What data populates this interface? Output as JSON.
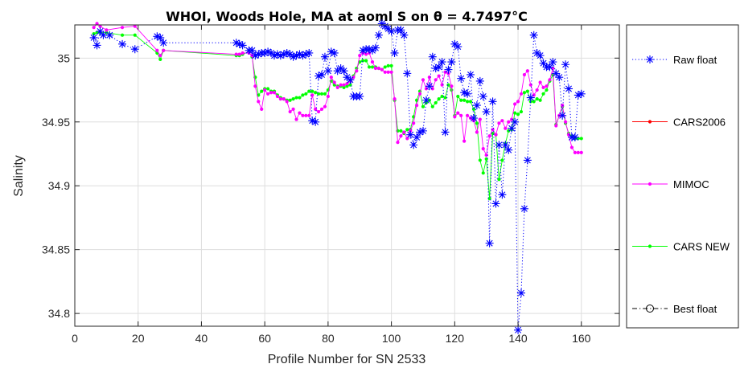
{
  "chart_data": {
    "type": "line",
    "title": "WHOI, Woods Hole, MA at aoml S on θ = 4.7497°C",
    "xlabel": "Profile Number for SN 2533",
    "ylabel": "Salinity",
    "xlim": [
      0,
      172
    ],
    "ylim": [
      34.79,
      35.026
    ],
    "xticks": [
      0,
      20,
      40,
      60,
      80,
      100,
      120,
      140,
      160
    ],
    "yticks": [
      34.8,
      34.85,
      34.9,
      34.95,
      35
    ],
    "grid": true,
    "legend_position": "outside-right",
    "series": [
      {
        "name": "Raw float",
        "color": "#0000ff",
        "line": "dotted",
        "marker": "asterisk",
        "x": [
          6,
          7,
          8,
          9,
          11,
          15,
          19,
          26,
          27,
          28,
          51,
          52,
          53,
          55,
          56,
          57,
          58,
          59,
          60,
          61,
          62,
          63,
          64,
          65,
          66,
          67,
          68,
          69,
          70,
          71,
          72,
          73,
          74,
          75,
          76,
          77,
          78,
          79,
          80,
          81,
          82,
          83,
          84,
          85,
          86,
          87,
          88,
          89,
          90,
          91,
          92,
          93,
          94,
          95,
          96,
          97,
          98,
          99,
          100,
          101,
          102,
          103,
          104,
          105,
          106,
          107,
          108,
          109,
          110,
          111,
          112,
          113,
          114,
          115,
          116,
          117,
          118,
          119,
          120,
          121,
          122,
          123,
          124,
          125,
          126,
          127,
          128,
          129,
          130,
          131,
          132,
          133,
          134,
          135,
          136,
          137,
          138,
          139,
          140,
          141,
          142,
          143,
          144,
          145,
          146,
          147,
          148,
          149,
          150,
          151,
          152,
          153,
          154,
          155,
          156,
          157,
          158,
          159,
          160
        ],
        "values": [
          35.016,
          35.01,
          35.021,
          35.018,
          35.018,
          35.011,
          35.007,
          35.017,
          35.016,
          35.012,
          35.012,
          35.011,
          35.01,
          35.006,
          35.006,
          35.002,
          35.003,
          35.004,
          35.004,
          35.005,
          35.004,
          35.002,
          35.003,
          35.002,
          35.003,
          35.004,
          35.003,
          35.001,
          35.002,
          35.003,
          35.002,
          35.003,
          35.004,
          34.951,
          34.95,
          34.986,
          34.987,
          35.001,
          34.99,
          35.005,
          35.004,
          34.99,
          34.992,
          34.99,
          34.985,
          34.983,
          34.97,
          34.97,
          34.97,
          35.006,
          35.007,
          35.007,
          35.006,
          35.008,
          35.018,
          35.027,
          35.025,
          35.023,
          35.021,
          35.004,
          35.022,
          35.022,
          35.018,
          34.988,
          34.94,
          34.932,
          34.938,
          34.942,
          34.943,
          34.967,
          34.978,
          35.001,
          34.992,
          34.993,
          34.997,
          34.942,
          34.991,
          34.997,
          35.011,
          35.009,
          34.984,
          34.973,
          34.972,
          34.987,
          34.953,
          34.963,
          34.982,
          34.97,
          34.958,
          34.855,
          34.966,
          34.886,
          34.932,
          34.893,
          34.932,
          34.928,
          34.945,
          34.95,
          34.787,
          34.816,
          34.882,
          34.92,
          34.969,
          35.018,
          35.004,
          35.002,
          34.996,
          34.993,
          34.993,
          34.997,
          34.988,
          34.985,
          34.955,
          34.995,
          34.976,
          34.938,
          34.938,
          34.971,
          34.972
        ]
      },
      {
        "name": "CARS2006",
        "color": "#ff0000",
        "line": "solid",
        "marker": "dot",
        "x": [],
        "values": []
      },
      {
        "name": "MIMOC",
        "color": "#ff00ff",
        "line": "solid",
        "marker": "dot",
        "x": [
          6,
          7,
          8,
          10,
          15,
          19,
          26,
          27,
          28,
          51,
          52,
          53,
          55,
          56,
          57,
          58,
          59,
          60,
          61,
          62,
          63,
          64,
          65,
          66,
          67,
          68,
          69,
          70,
          71,
          72,
          73,
          74,
          75,
          76,
          77,
          78,
          79,
          80,
          81,
          82,
          83,
          84,
          85,
          86,
          87,
          88,
          89,
          90,
          91,
          92,
          93,
          94,
          95,
          96,
          97,
          98,
          99,
          100,
          101,
          102,
          103,
          104,
          105,
          106,
          107,
          108,
          109,
          110,
          111,
          112,
          113,
          114,
          115,
          116,
          117,
          118,
          119,
          120,
          121,
          122,
          123,
          124,
          125,
          126,
          127,
          128,
          129,
          130,
          131,
          132,
          133,
          134,
          135,
          136,
          137,
          138,
          139,
          140,
          141,
          142,
          143,
          144,
          145,
          146,
          147,
          148,
          149,
          150,
          151,
          152,
          153,
          154,
          155,
          156,
          157,
          158,
          159,
          160
        ],
        "values": [
          35.024,
          35.027,
          35.025,
          35.022,
          35.024,
          35.025,
          35.006,
          35.002,
          35.006,
          35.003,
          35.003,
          35.004,
          35.004,
          35.002,
          34.978,
          34.966,
          34.96,
          34.975,
          34.972,
          34.973,
          34.973,
          34.97,
          34.968,
          34.968,
          34.966,
          34.958,
          34.96,
          34.952,
          34.957,
          34.955,
          34.955,
          34.955,
          34.971,
          34.96,
          34.958,
          34.96,
          34.962,
          34.97,
          34.985,
          34.981,
          34.977,
          34.979,
          34.979,
          34.98,
          34.982,
          34.985,
          34.99,
          35.002,
          35.004,
          35.003,
          35.004,
          34.997,
          34.992,
          34.992,
          34.991,
          34.989,
          34.989,
          34.989,
          34.968,
          34.934,
          34.939,
          34.942,
          34.937,
          34.943,
          34.949,
          34.963,
          34.972,
          34.983,
          34.976,
          34.985,
          34.976,
          34.983,
          34.986,
          34.979,
          34.989,
          34.988,
          34.978,
          34.954,
          34.957,
          34.955,
          34.935,
          34.955,
          34.953,
          34.951,
          34.942,
          34.952,
          34.929,
          34.924,
          34.939,
          34.944,
          34.94,
          34.949,
          34.951,
          34.945,
          34.95,
          34.952,
          34.964,
          34.966,
          34.972,
          34.987,
          34.99,
          34.979,
          34.971,
          34.975,
          34.981,
          34.977,
          34.978,
          34.983,
          34.992,
          34.947,
          34.955,
          34.963,
          34.95,
          34.94,
          34.93,
          34.926,
          34.926,
          34.926
        ]
      },
      {
        "name": "CARS NEW",
        "color": "#00ff00",
        "line": "solid",
        "marker": "dot",
        "x": [
          6,
          7,
          8,
          10,
          15,
          19,
          26,
          27,
          28,
          51,
          52,
          53,
          55,
          56,
          57,
          58,
          59,
          60,
          61,
          62,
          63,
          64,
          65,
          66,
          67,
          68,
          69,
          70,
          71,
          72,
          73,
          74,
          75,
          76,
          77,
          78,
          79,
          80,
          81,
          82,
          83,
          84,
          85,
          86,
          87,
          88,
          89,
          90,
          91,
          92,
          93,
          94,
          95,
          96,
          97,
          98,
          99,
          100,
          101,
          102,
          103,
          104,
          105,
          106,
          107,
          108,
          109,
          110,
          111,
          112,
          113,
          114,
          115,
          116,
          117,
          118,
          119,
          120,
          121,
          122,
          123,
          124,
          125,
          126,
          127,
          128,
          129,
          130,
          131,
          132,
          133,
          134,
          135,
          136,
          137,
          138,
          139,
          140,
          141,
          142,
          143,
          144,
          145,
          146,
          147,
          148,
          149,
          150,
          151,
          152,
          153,
          154,
          155,
          156,
          157,
          158,
          159,
          160
        ],
        "values": [
          35.019,
          35.02,
          35.02,
          35.02,
          35.018,
          35.018,
          35.004,
          34.999,
          35.006,
          35.002,
          35.002,
          35.003,
          35.005,
          35.001,
          34.985,
          34.971,
          34.974,
          34.976,
          34.976,
          34.974,
          34.974,
          34.971,
          34.969,
          34.968,
          34.967,
          34.967,
          34.968,
          34.969,
          34.969,
          34.971,
          34.972,
          34.974,
          34.974,
          34.973,
          34.972,
          34.972,
          34.972,
          34.975,
          34.982,
          34.979,
          34.978,
          34.978,
          34.977,
          34.978,
          34.979,
          34.986,
          34.992,
          34.997,
          34.998,
          34.998,
          34.993,
          34.993,
          34.993,
          34.992,
          34.991,
          34.993,
          34.994,
          34.994,
          34.967,
          34.943,
          34.943,
          34.941,
          34.944,
          34.944,
          34.954,
          34.967,
          34.974,
          34.962,
          34.965,
          34.967,
          34.962,
          34.965,
          34.968,
          34.97,
          34.969,
          34.979,
          34.975,
          34.955,
          34.97,
          34.967,
          34.967,
          34.966,
          34.966,
          34.96,
          34.949,
          34.92,
          34.91,
          34.921,
          34.89,
          34.941,
          34.94,
          34.905,
          34.92,
          34.933,
          34.943,
          34.944,
          34.957,
          34.956,
          34.958,
          34.973,
          34.974,
          34.966,
          34.966,
          34.968,
          34.967,
          34.972,
          34.975,
          34.982,
          34.987,
          34.948,
          34.955,
          34.962,
          34.949,
          34.941,
          34.939,
          34.937,
          34.937,
          34.937
        ]
      },
      {
        "name": "Best float",
        "color": "#000000",
        "line": "dashdot",
        "marker": "circle",
        "x": [],
        "values": []
      }
    ]
  }
}
